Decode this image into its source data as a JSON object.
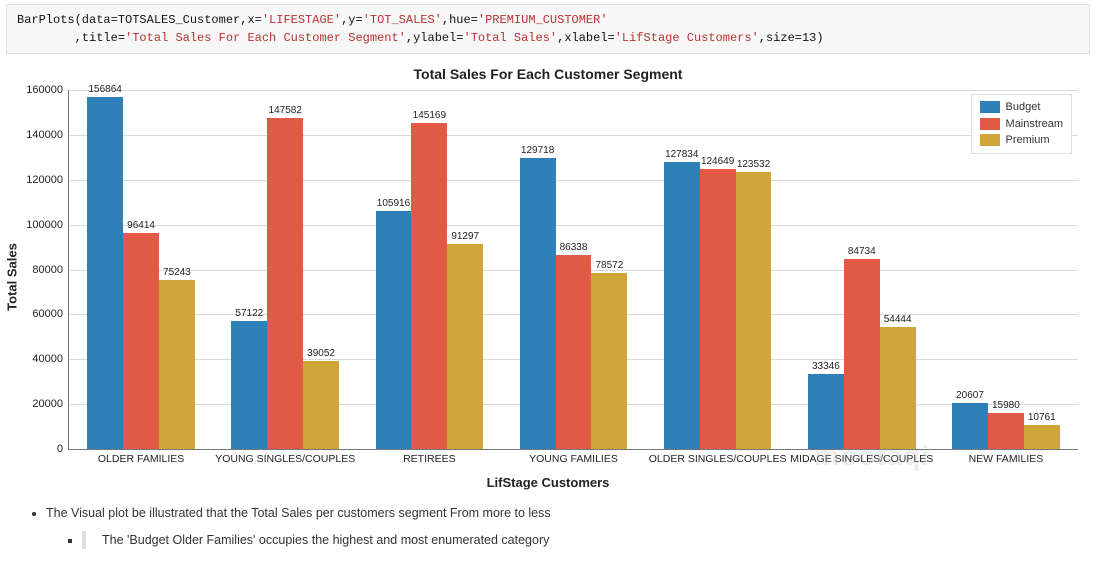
{
  "code": {
    "line1_parts": [
      "BarPlots",
      "(data=TOTSALES_Customer,x=",
      "'LIFESTAGE'",
      ",y=",
      "'TOT_SALES'",
      ",hue=",
      "'PREMIUM_CUSTOMER'"
    ],
    "line2_parts": [
      "        ,title=",
      "'Total Sales For Each Customer Segment'",
      ",ylabel=",
      "'Total Sales'",
      ",xlabel=",
      "'LifStage Customers'",
      ",size=",
      "13",
      ")"
    ]
  },
  "chart": {
    "type": "bar",
    "title": "Total Sales For Each Customer Segment",
    "title_fontsize": 14,
    "xlabel": "LifStage Customers",
    "ylabel": "Total Sales",
    "label_fontsize": 13,
    "ylim": [
      0,
      160000
    ],
    "ytick_step": 20000,
    "yticks": [
      0,
      20000,
      40000,
      60000,
      80000,
      100000,
      120000,
      140000,
      160000
    ],
    "grid_color": "#d9d9d9",
    "axis_color": "#777777",
    "background_color": "#ffffff",
    "value_label_fontsize": 10,
    "xtick_fontsize": 10.5,
    "categories": [
      "OLDER FAMILIES",
      "YOUNG SINGLES/COUPLES",
      "RETIREES",
      "YOUNG FAMILIES",
      "OLDER SINGLES/COUPLES",
      "MIDAGE SINGLES/COUPLES",
      "NEW FAMILIES"
    ],
    "series": [
      {
        "name": "Budget",
        "color": "#2f7fb8",
        "values": [
          156864,
          57122,
          105916,
          129718,
          127834,
          33346,
          20607
        ]
      },
      {
        "name": "Mainstream",
        "color": "#e15a46",
        "values": [
          96414,
          147582,
          145169,
          86338,
          124649,
          84734,
          15980
        ]
      },
      {
        "name": "Premium",
        "color": "#d0a63a",
        "values": [
          75243,
          39052,
          91297,
          78572,
          123532,
          54444,
          10761
        ]
      }
    ],
    "legend": {
      "position": "upper-right",
      "border_color": "#dddddd",
      "background_color": "#ffffff",
      "fontsize": 11
    }
  },
  "bullets": {
    "main": "The Visual plot be illustrated that the Total Sales per customers segment From more to less",
    "sub": "The 'Budget Older Families' occupies the highest and most enumerated category"
  },
  "watermark": "mootaqi"
}
